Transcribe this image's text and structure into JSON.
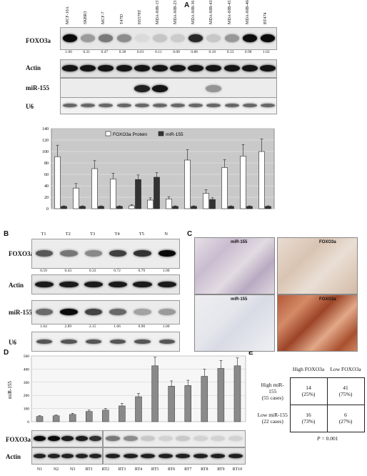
{
  "panel_labels": {
    "a": "A",
    "b": "B",
    "c": "C",
    "d": "D",
    "e": "E"
  },
  "panel_a": {
    "cell_lines": [
      "MCF-10A",
      "SKBR3",
      "MCF-7",
      "T47D",
      "HS578T",
      "MDA-MB-157",
      "MDA-MB-231",
      "MDA-MB-361",
      "MDA-MB-435",
      "MDA-MB-453",
      "MDA-MB-468",
      "BT474"
    ],
    "rows": {
      "foxo3a": "FOXO3a",
      "actin": "Actin",
      "mir155": "miR-155",
      "u6": "U6"
    },
    "foxo3a_ratios": [
      "1.00",
      "0.31",
      "0.47",
      "0.38",
      "0.01",
      "0.11",
      "0.08",
      "0.86",
      "0.10",
      "0.33",
      "0.98",
      "1.02"
    ]
  },
  "chart_data": [
    {
      "type": "bar",
      "categories": [
        "MCF-10A",
        "SKBR3",
        "MCF-7",
        "T47D",
        "HS578T",
        "MDA-MB-157",
        "MDA-MB-231",
        "MDA-MB-361",
        "MDA-MB-435",
        "MDA-MB-453",
        "MDA-MB-468",
        "BT474"
      ],
      "series": [
        {
          "name": "FOXO3a Protein",
          "values": [
            91,
            36,
            70,
            52,
            5,
            15,
            17,
            85,
            27,
            72,
            92,
            100
          ],
          "errors": [
            20,
            8,
            14,
            10,
            2,
            4,
            4,
            18,
            6,
            14,
            20,
            22
          ],
          "color": "#ffffff"
        },
        {
          "name": "miR-155",
          "values": [
            4,
            4,
            4,
            4,
            51,
            55,
            4,
            4,
            16,
            4,
            4,
            4
          ],
          "errors": [
            1,
            1,
            1,
            1,
            8,
            8,
            1,
            1,
            3,
            1,
            1,
            1
          ],
          "color": "#333333"
        }
      ],
      "ylim": [
        0,
        140
      ],
      "yticks": [
        "0",
        "20",
        "40",
        "60",
        "80",
        "100",
        "120",
        "140"
      ],
      "legend": "top-center",
      "grid": true
    },
    {
      "type": "bar",
      "categories": [
        "N1",
        "N2",
        "N3",
        "RT1",
        "RT2",
        "RT3",
        "RT4",
        "RT5",
        "RT6",
        "RT7",
        "RT8",
        "RT9",
        "RT10"
      ],
      "series": [
        {
          "values": [
            40,
            45,
            55,
            78,
            88,
            120,
            190,
            425,
            270,
            275,
            345,
            405,
            425
          ],
          "errors": [
            6,
            6,
            8,
            10,
            12,
            18,
            25,
            65,
            40,
            40,
            55,
            60,
            60
          ],
          "color": "#8a8a8a"
        }
      ],
      "ylabel": "miR-155",
      "ylim": [
        0,
        500
      ],
      "yticks": [
        "0",
        "100",
        "200",
        "300",
        "400",
        "500"
      ],
      "grid": true
    }
  ],
  "panel_b": {
    "lanes": [
      "T1",
      "T2",
      "T3",
      "T4",
      "T5",
      "N"
    ],
    "rows": {
      "foxo3a": "FOXO3a",
      "actin": "Actin",
      "mir155": "miR-155",
      "u6": "U6"
    },
    "foxo3a_ratios": [
      "0.59",
      "0.43",
      "0.33",
      "0.72",
      "0.79",
      "1.00"
    ],
    "mir155_ratios": [
      "1.64",
      "2.89",
      "2.15",
      "1.66",
      "0.90",
      "1.00"
    ]
  },
  "panel_c": {
    "labels": [
      [
        "miR-155",
        "FOXO3a"
      ],
      [
        "miR-155",
        "FOXO3a"
      ]
    ]
  },
  "panel_d": {
    "rows": {
      "foxo3a": "FOXO3a",
      "actin": "Actin"
    },
    "lanes": [
      "N1",
      "N2",
      "N3",
      "RT1",
      "RT2",
      "RT3",
      "RT4",
      "RT5",
      "RT6",
      "RT7",
      "RT8",
      "RT9",
      "RT10"
    ]
  },
  "panel_e": {
    "col_headers": [
      "High FOXO3a",
      "Low FOXO3a"
    ],
    "rows": [
      {
        "label1": "High miR-155",
        "label2": "(55 cases)",
        "c1a": "14",
        "c1b": "(25%)",
        "c2a": "41",
        "c2b": "(75%)"
      },
      {
        "label1": "Low miR-155",
        "label2": "(22 cases)",
        "c1a": "16",
        "c1b": "(73%)",
        "c2a": "6",
        "c2b": "(27%)"
      }
    ],
    "p_label": "P",
    "p_value": "= 0.001"
  }
}
